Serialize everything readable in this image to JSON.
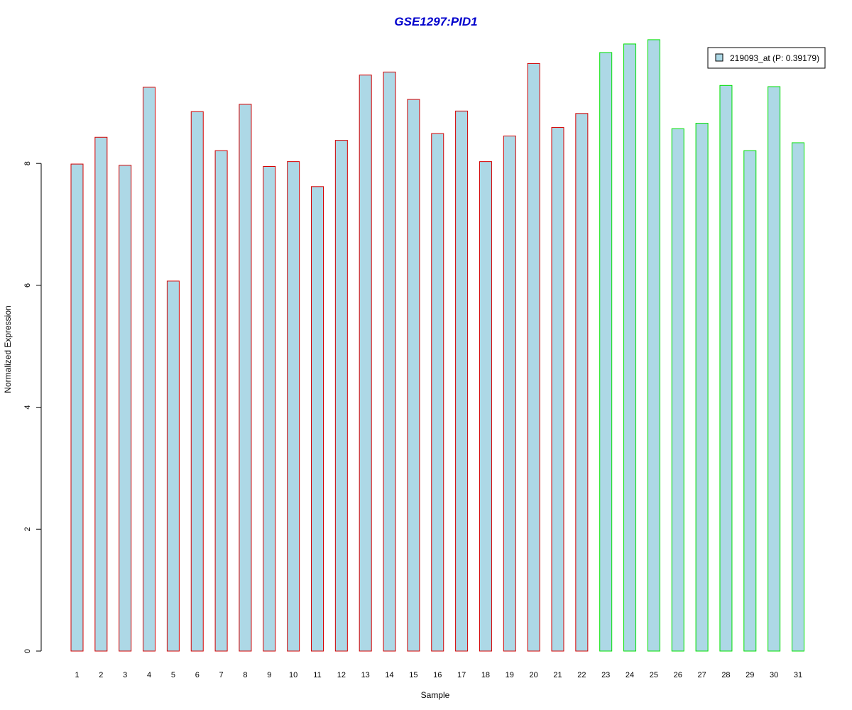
{
  "chart_data": {
    "type": "bar",
    "title": "GSE1297:PID1",
    "xlabel": "Sample",
    "ylabel": "Normalized Expression",
    "ylim": [
      0,
      10
    ],
    "yticks": [
      "0",
      "2",
      "4",
      "6",
      "8"
    ],
    "categories": [
      "1",
      "2",
      "3",
      "4",
      "5",
      "6",
      "7",
      "8",
      "9",
      "10",
      "11",
      "12",
      "13",
      "14",
      "15",
      "16",
      "17",
      "18",
      "19",
      "20",
      "21",
      "22",
      "23",
      "24",
      "25",
      "26",
      "27",
      "28",
      "29",
      "30",
      "31"
    ],
    "series": [
      {
        "name": "219093_at (P: 0.39179)",
        "values": [
          7.99,
          8.43,
          7.97,
          9.25,
          6.07,
          8.85,
          8.21,
          8.97,
          7.95,
          8.03,
          7.62,
          8.38,
          9.45,
          9.5,
          9.05,
          8.49,
          8.86,
          8.03,
          8.45,
          9.64,
          8.59,
          8.82,
          9.82,
          9.96,
          10.03,
          8.57,
          8.66,
          9.28,
          8.21,
          9.26,
          8.34
        ]
      }
    ],
    "groups": [
      {
        "samples": "1-22",
        "border_color": "#d40000"
      },
      {
        "samples": "23-31",
        "border_color": "#00e000"
      }
    ],
    "bar_fill": "#add8e6",
    "title_color": "#0000cc",
    "legend_position": "top-right",
    "grid": false
  }
}
